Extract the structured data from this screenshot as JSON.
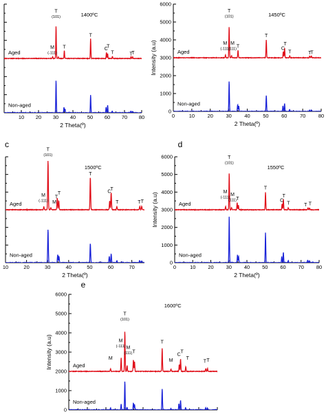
{
  "figure": {
    "x_axis_title": "2 Theta(º)",
    "y_axis_title": "Intensity (a.u)",
    "label_aged": "Aged",
    "label_non_aged": "Non-aged",
    "colors": {
      "aged": "#e0101a",
      "non_aged": "#1a23d8",
      "axis": "#000000"
    }
  },
  "chart_data": [
    {
      "panel": "",
      "title": "1400ºC",
      "type": "line",
      "xlim": [
        0,
        80
      ],
      "xticks": [
        10,
        20,
        30,
        40,
        50,
        60,
        70,
        80
      ],
      "ylim": [
        0,
        6000
      ],
      "yticks": [],
      "show_y_axis_title": false,
      "series": [
        {
          "name": "Aged",
          "offset": 3000,
          "base_noise": 15,
          "peaks": [
            [
              28.2,
              110
            ],
            [
              30.2,
              1800
            ],
            [
              31.5,
              80
            ],
            [
              35.0,
              450
            ],
            [
              50.3,
              1100
            ],
            [
              59.5,
              340
            ],
            [
              60.2,
              260
            ],
            [
              63.0,
              120
            ],
            [
              73.8,
              90
            ],
            [
              74.7,
              80
            ]
          ]
        },
        {
          "name": "Non-aged",
          "offset": 0,
          "base_noise": 15,
          "peaks": [
            [
              30.2,
              1800
            ],
            [
              34.8,
              300
            ],
            [
              35.4,
              220
            ],
            [
              50.3,
              1000
            ],
            [
              59.3,
              300
            ],
            [
              60.2,
              430
            ],
            [
              62.9,
              100
            ],
            [
              73.7,
              100
            ],
            [
              74.6,
              80
            ]
          ]
        }
      ],
      "annotations": [
        {
          "text": "T",
          "sub": "(101)",
          "x": 30.2,
          "y": 5300
        },
        {
          "text": "M",
          "sub": "(-111)",
          "x": 28.0,
          "y": 3300
        },
        {
          "text": "T",
          "sub": "",
          "x": 35.0,
          "y": 3550
        },
        {
          "text": "T",
          "sub": "",
          "x": 50.3,
          "y": 4200
        },
        {
          "text": "C",
          "sub": "",
          "x": 59.3,
          "y": 3450
        },
        {
          "text": "T",
          "sub": "",
          "x": 60.5,
          "y": 3580
        },
        {
          "text": "T",
          "sub": "",
          "x": 63.0,
          "y": 3250
        },
        {
          "text": "T",
          "sub": "",
          "x": 73.8,
          "y": 3180
        },
        {
          "text": "T",
          "sub": "",
          "x": 75.0,
          "y": 3220
        }
      ]
    },
    {
      "panel": "",
      "title": "1450ºC",
      "type": "line",
      "xlim": [
        0,
        80
      ],
      "xticks": [
        0,
        10,
        20,
        30,
        40,
        50,
        60,
        70,
        80
      ],
      "ylim": [
        0,
        6000
      ],
      "yticks": [
        0,
        1000,
        2000,
        3000,
        4000,
        5000,
        6000
      ],
      "show_y_axis_title": true,
      "series": [
        {
          "name": "Aged",
          "offset": 3000,
          "base_noise": 15,
          "peaks": [
            [
              28.2,
              160
            ],
            [
              30.2,
              1750
            ],
            [
              31.5,
              120
            ],
            [
              35.0,
              430
            ],
            [
              50.3,
              1000
            ],
            [
              59.5,
              350
            ],
            [
              60.2,
              550
            ],
            [
              63.0,
              120
            ],
            [
              73.8,
              100
            ],
            [
              74.7,
              100
            ]
          ]
        },
        {
          "name": "Non-aged",
          "offset": 0,
          "base_noise": 15,
          "peaks": [
            [
              30.2,
              1700
            ],
            [
              34.8,
              380
            ],
            [
              35.4,
              300
            ],
            [
              50.3,
              900
            ],
            [
              59.3,
              300
            ],
            [
              60.2,
              450
            ],
            [
              62.9,
              100
            ],
            [
              73.7,
              80
            ],
            [
              74.6,
              70
            ]
          ]
        }
      ],
      "annotations": [
        {
          "text": "T",
          "sub": "(101)",
          "x": 30.2,
          "y": 5300
        },
        {
          "text": "M",
          "sub": "(-111)",
          "x": 28.0,
          "y": 3500
        },
        {
          "text": "M",
          "sub": "(111)",
          "x": 32.0,
          "y": 3500
        },
        {
          "text": "T",
          "sub": "",
          "x": 35.0,
          "y": 3550
        },
        {
          "text": "T",
          "sub": "",
          "x": 50.3,
          "y": 4150
        },
        {
          "text": "C",
          "sub": "",
          "x": 59.3,
          "y": 3450
        },
        {
          "text": "T",
          "sub": "",
          "x": 60.5,
          "y": 3700
        },
        {
          "text": "T",
          "sub": "",
          "x": 63.0,
          "y": 3250
        },
        {
          "text": "T",
          "sub": "",
          "x": 73.8,
          "y": 3200
        },
        {
          "text": "T",
          "sub": "",
          "x": 75.0,
          "y": 3220
        }
      ]
    },
    {
      "panel": "c",
      "title": "1500ºC",
      "type": "line",
      "xlim": [
        10,
        76
      ],
      "xticks": [
        10,
        20,
        30,
        40,
        50,
        60,
        70
      ],
      "ylim": [
        0,
        6000
      ],
      "yticks": [],
      "show_y_axis_title": false,
      "series": [
        {
          "name": "Aged",
          "offset": 3000,
          "base_noise": 15,
          "peaks": [
            [
              28.2,
              180
            ],
            [
              30.2,
              2800
            ],
            [
              31.5,
              120
            ],
            [
              34.6,
              650
            ],
            [
              35.3,
              500
            ],
            [
              50.3,
              1850
            ],
            [
              59.5,
              500
            ],
            [
              60.2,
              1000
            ],
            [
              62.9,
              180
            ],
            [
              73.8,
              200
            ],
            [
              74.7,
              190
            ]
          ]
        },
        {
          "name": "Non-aged",
          "offset": 0,
          "base_noise": 15,
          "peaks": [
            [
              30.2,
              1900
            ],
            [
              34.8,
              450
            ],
            [
              35.4,
              350
            ],
            [
              50.3,
              1100
            ],
            [
              59.3,
              350
            ],
            [
              60.2,
              500
            ],
            [
              62.9,
              120
            ],
            [
              73.7,
              120
            ],
            [
              74.6,
              100
            ]
          ]
        }
      ],
      "annotations": [
        {
          "text": "T",
          "sub": "(101)",
          "x": 30.2,
          "y": 6100
        },
        {
          "text": "M",
          "sub": "(-111)",
          "x": 28.0,
          "y": 3500
        },
        {
          "text": "M",
          "sub": "",
          "x": 33.2,
          "y": 3350
        },
        {
          "text": "T",
          "sub": "",
          "x": 34.2,
          "y": 3650
        },
        {
          "text": "T",
          "sub": "",
          "x": 35.5,
          "y": 3850
        },
        {
          "text": "T",
          "sub": "",
          "x": 50.3,
          "y": 4950
        },
        {
          "text": "C",
          "sub": "",
          "x": 59.3,
          "y": 3950
        },
        {
          "text": "T",
          "sub": "",
          "x": 60.5,
          "y": 4100
        },
        {
          "text": "T",
          "sub": "",
          "x": 63.0,
          "y": 3350
        },
        {
          "text": "T",
          "sub": "",
          "x": 73.5,
          "y": 3350
        },
        {
          "text": "T",
          "sub": "",
          "x": 75.0,
          "y": 3380
        }
      ]
    },
    {
      "panel": "d",
      "title": "1550ºC",
      "type": "line",
      "xlim": [
        0,
        80
      ],
      "xticks": [
        0,
        10,
        20,
        30,
        40,
        50,
        60,
        70,
        80
      ],
      "ylim": [
        0,
        6000
      ],
      "yticks": [
        0,
        1000,
        2000,
        3000,
        4000,
        5000,
        6000
      ],
      "show_y_axis_title": true,
      "series": [
        {
          "name": "Aged",
          "offset": 3000,
          "base_noise": 15,
          "peaks": [
            [
              28.2,
              200
            ],
            [
              30.2,
              2100
            ],
            [
              31.5,
              130
            ],
            [
              34.6,
              400
            ],
            [
              35.3,
              250
            ],
            [
              50.3,
              1000
            ],
            [
              59.5,
              350
            ],
            [
              60.2,
              600
            ],
            [
              62.9,
              130
            ],
            [
              73.8,
              100
            ],
            [
              74.7,
              110
            ]
          ]
        },
        {
          "name": "Non-aged",
          "offset": 0,
          "base_noise": 15,
          "peaks": [
            [
              30.2,
              2650
            ],
            [
              34.8,
              450
            ],
            [
              35.4,
              350
            ],
            [
              50.3,
              1700
            ],
            [
              59.3,
              350
            ],
            [
              60.2,
              600
            ],
            [
              62.9,
              120
            ],
            [
              73.7,
              150
            ],
            [
              74.6,
              120
            ]
          ]
        }
      ],
      "annotations": [
        {
          "text": "T",
          "sub": "(101)",
          "x": 30.2,
          "y": 5650
        },
        {
          "text": "M",
          "sub": "(-111)",
          "x": 28.0,
          "y": 3700
        },
        {
          "text": "M",
          "sub": "(111)",
          "x": 32.0,
          "y": 3550
        },
        {
          "text": "T",
          "sub": "",
          "x": 34.8,
          "y": 3550
        },
        {
          "text": "T",
          "sub": "",
          "x": 50.3,
          "y": 4150
        },
        {
          "text": "C",
          "sub": "",
          "x": 59.3,
          "y": 3450
        },
        {
          "text": "T",
          "sub": "",
          "x": 60.5,
          "y": 3700
        },
        {
          "text": "T",
          "sub": "",
          "x": 63.0,
          "y": 3300
        },
        {
          "text": "T",
          "sub": "",
          "x": 72.5,
          "y": 3200
        },
        {
          "text": "T",
          "sub": "",
          "x": 75.0,
          "y": 3250
        }
      ]
    },
    {
      "panel": "e",
      "title": "1600ºC",
      "type": "line",
      "xlim": [
        0,
        80
      ],
      "xticks": [],
      "show_x_axis_title": false,
      "ylim": [
        0,
        6000
      ],
      "yticks": [
        0,
        1000,
        2000,
        3000,
        4000,
        5000,
        6000
      ],
      "show_y_axis_title": true,
      "series": [
        {
          "name": "Aged",
          "offset": 2000,
          "base_noise": 15,
          "peaks": [
            [
              22.5,
              150
            ],
            [
              28.2,
              700
            ],
            [
              30.2,
              2100
            ],
            [
              31.4,
              300
            ],
            [
              34.8,
              600
            ],
            [
              35.4,
              500
            ],
            [
              50.3,
              1200
            ],
            [
              55.0,
              120
            ],
            [
              59.5,
              350
            ],
            [
              60.2,
              650
            ],
            [
              63.0,
              230
            ],
            [
              73.8,
              150
            ],
            [
              74.7,
              150
            ]
          ]
        },
        {
          "name": "Non-aged",
          "offset": 0,
          "base_noise": 15,
          "peaks": [
            [
              22.5,
              100
            ],
            [
              28.2,
              300
            ],
            [
              30.2,
              1500
            ],
            [
              31.4,
              130
            ],
            [
              34.8,
              350
            ],
            [
              35.4,
              280
            ],
            [
              50.3,
              1100
            ],
            [
              55.0,
              80
            ],
            [
              59.3,
              320
            ],
            [
              60.2,
              500
            ],
            [
              62.9,
              120
            ],
            [
              73.7,
              100
            ],
            [
              74.6,
              90
            ]
          ]
        }
      ],
      "annotations": [
        {
          "text": "T",
          "sub": "(101)",
          "x": 30.2,
          "y": 4700
        },
        {
          "text": "M",
          "sub": "",
          "x": 22.5,
          "y": 2600
        },
        {
          "text": "M",
          "sub": "(-111)",
          "x": 28.0,
          "y": 3300
        },
        {
          "text": "M",
          "sub": "(111)",
          "x": 32.0,
          "y": 2950
        },
        {
          "text": "T",
          "sub": "",
          "x": 35.0,
          "y": 2950
        },
        {
          "text": "T",
          "sub": "",
          "x": 50.3,
          "y": 3450
        },
        {
          "text": "M",
          "sub": "",
          "x": 55.0,
          "y": 2500
        },
        {
          "text": "C",
          "sub": "",
          "x": 59.3,
          "y": 2800
        },
        {
          "text": "T",
          "sub": "",
          "x": 61.0,
          "y": 2950
        },
        {
          "text": "T",
          "sub": "",
          "x": 64.0,
          "y": 2600
        },
        {
          "text": "T",
          "sub": "",
          "x": 73.3,
          "y": 2450
        },
        {
          "text": "T",
          "sub": "",
          "x": 75.0,
          "y": 2500
        }
      ]
    }
  ]
}
